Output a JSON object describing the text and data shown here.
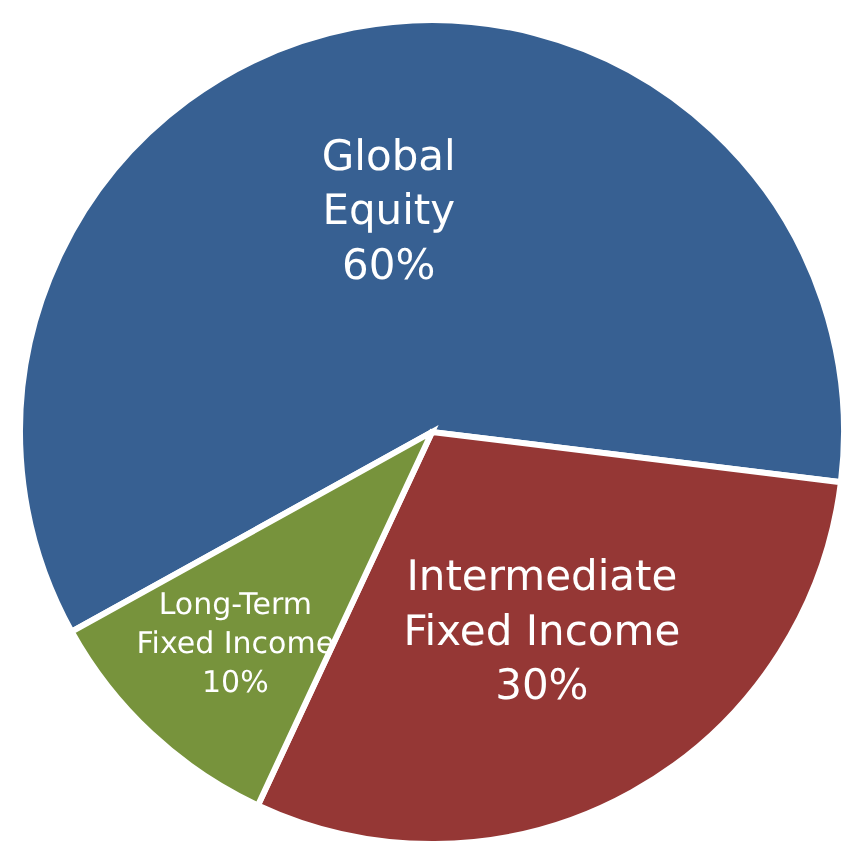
{
  "chart_data": {
    "type": "pie",
    "categories": [
      "Global Equity",
      "Intermediate Fixed Income",
      "Long-Term Fixed Income"
    ],
    "values": [
      60,
      30,
      10
    ],
    "colors": [
      "#376092",
      "#953735",
      "#77933c"
    ],
    "value_labels": [
      "60%",
      "30%",
      "10%"
    ]
  }
}
